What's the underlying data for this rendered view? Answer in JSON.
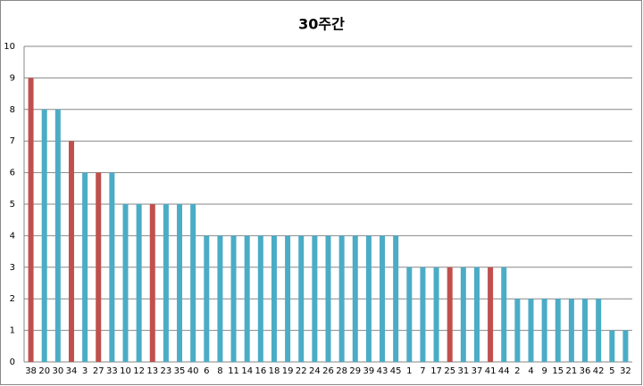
{
  "chart_data": {
    "type": "bar",
    "title": "30주간",
    "categories": [
      "38",
      "20",
      "30",
      "34",
      "3",
      "27",
      "33",
      "10",
      "12",
      "13",
      "23",
      "35",
      "40",
      "6",
      "8",
      "11",
      "14",
      "16",
      "18",
      "19",
      "22",
      "24",
      "26",
      "28",
      "29",
      "39",
      "43",
      "45",
      "1",
      "7",
      "17",
      "25",
      "31",
      "37",
      "41",
      "44",
      "2",
      "4",
      "9",
      "15",
      "21",
      "36",
      "42",
      "5",
      "32"
    ],
    "values": [
      9,
      8,
      8,
      7,
      6,
      6,
      6,
      5,
      5,
      5,
      5,
      5,
      5,
      4,
      4,
      4,
      4,
      4,
      4,
      4,
      4,
      4,
      4,
      4,
      4,
      4,
      4,
      4,
      3,
      3,
      3,
      3,
      3,
      3,
      3,
      3,
      2,
      2,
      2,
      2,
      2,
      2,
      2,
      1,
      1
    ],
    "colors": [
      "#c0504d",
      "#4bacc6",
      "#4bacc6",
      "#c0504d",
      "#4bacc6",
      "#c0504d",
      "#4bacc6",
      "#4bacc6",
      "#4bacc6",
      "#c0504d",
      "#4bacc6",
      "#4bacc6",
      "#4bacc6",
      "#4bacc6",
      "#4bacc6",
      "#4bacc6",
      "#4bacc6",
      "#4bacc6",
      "#4bacc6",
      "#4bacc6",
      "#4bacc6",
      "#4bacc6",
      "#4bacc6",
      "#4bacc6",
      "#4bacc6",
      "#4bacc6",
      "#4bacc6",
      "#4bacc6",
      "#4bacc6",
      "#4bacc6",
      "#4bacc6",
      "#c0504d",
      "#4bacc6",
      "#4bacc6",
      "#c0504d",
      "#4bacc6",
      "#4bacc6",
      "#4bacc6",
      "#4bacc6",
      "#4bacc6",
      "#4bacc6",
      "#4bacc6",
      "#4bacc6",
      "#4bacc6",
      "#4bacc6"
    ],
    "ylim": [
      0,
      10
    ],
    "yticks": [
      0,
      1,
      2,
      3,
      4,
      5,
      6,
      7,
      8,
      9,
      10
    ],
    "grid": true
  }
}
